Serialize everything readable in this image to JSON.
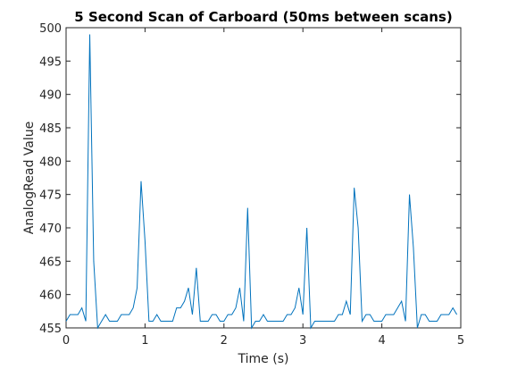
{
  "chart_data": {
    "type": "line",
    "title": "5 Second Scan of Carboard (50ms between scans)",
    "xlabel": "Time (s)",
    "ylabel": "AnalogRead Value",
    "xlim": [
      0,
      5
    ],
    "ylim": [
      455,
      500
    ],
    "xticks": [
      "0",
      "1",
      "2",
      "3",
      "4",
      "5"
    ],
    "yticks": [
      "455",
      "460",
      "465",
      "470",
      "475",
      "480",
      "485",
      "490",
      "495",
      "500"
    ],
    "grid": false,
    "series": [
      {
        "color": "#0072BD",
        "x": [
          0,
          0.05,
          0.1,
          0.15,
          0.2,
          0.25,
          0.3,
          0.35,
          0.4,
          0.45,
          0.5,
          0.55,
          0.6,
          0.65,
          0.7,
          0.75,
          0.8,
          0.85,
          0.9,
          0.95,
          1.0,
          1.05,
          1.1,
          1.15,
          1.2,
          1.25,
          1.3,
          1.35,
          1.4,
          1.45,
          1.5,
          1.55,
          1.6,
          1.65,
          1.7,
          1.75,
          1.8,
          1.85,
          1.9,
          1.95,
          2.0,
          2.05,
          2.1,
          2.15,
          2.2,
          2.25,
          2.3,
          2.35,
          2.4,
          2.45,
          2.5,
          2.55,
          2.6,
          2.65,
          2.7,
          2.75,
          2.8,
          2.85,
          2.9,
          2.95,
          3.0,
          3.05,
          3.1,
          3.15,
          3.2,
          3.25,
          3.3,
          3.35,
          3.4,
          3.45,
          3.5,
          3.55,
          3.6,
          3.65,
          3.7,
          3.75,
          3.8,
          3.85,
          3.9,
          3.95,
          4.0,
          4.05,
          4.1,
          4.15,
          4.2,
          4.25,
          4.3,
          4.35,
          4.4,
          4.45,
          4.5,
          4.55,
          4.6,
          4.65,
          4.7,
          4.75,
          4.8,
          4.85,
          4.9,
          4.95
        ],
        "y": [
          456,
          457,
          457,
          457,
          458,
          456,
          499,
          465,
          455,
          456,
          457,
          456,
          456,
          456,
          457,
          457,
          457,
          458,
          461,
          477,
          468,
          456,
          456,
          457,
          456,
          456,
          456,
          456,
          458,
          458,
          459,
          461,
          457,
          464,
          456,
          456,
          456,
          457,
          457,
          456,
          456,
          457,
          457,
          458,
          461,
          456,
          473,
          455,
          456,
          456,
          457,
          456,
          456,
          456,
          456,
          456,
          457,
          457,
          458,
          461,
          457,
          470,
          455,
          456,
          456,
          456,
          456,
          456,
          456,
          457,
          457,
          459,
          457,
          476,
          470,
          456,
          457,
          457,
          456,
          456,
          456,
          457,
          457,
          457,
          458,
          459,
          456,
          475,
          467,
          455,
          457,
          457,
          456,
          456,
          456,
          457,
          457,
          457,
          458,
          457
        ]
      }
    ]
  }
}
